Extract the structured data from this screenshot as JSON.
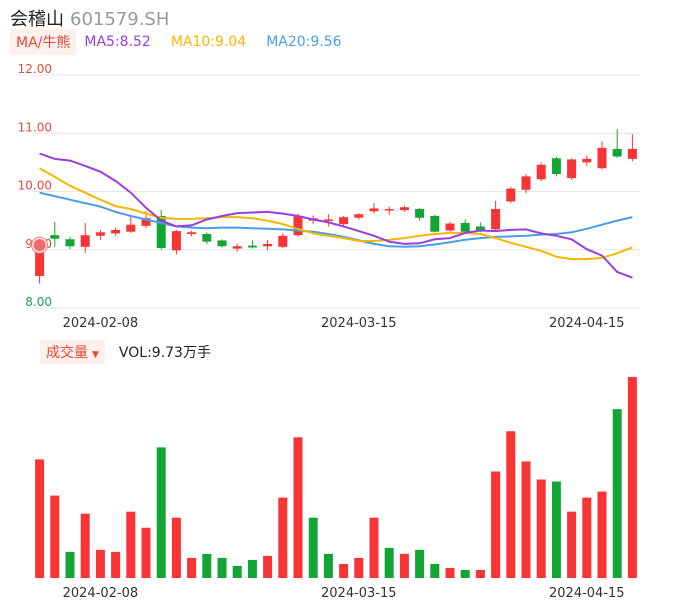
{
  "header": {
    "name": "会稽山",
    "code": "601579.SH"
  },
  "legend": {
    "tag": "MA/牛熊",
    "ma5": "MA5:8.52",
    "ma10": "MA10:9.04",
    "ma20": "MA20:9.56",
    "ma5_color": "#9b3ee0",
    "ma10_color": "#f5b800",
    "ma20_color": "#4a9ee8"
  },
  "volume_legend": {
    "tag": "成交量",
    "caret": "▼",
    "label": "VOL:9.73万手"
  },
  "colors": {
    "up": "#f93434",
    "down": "#13a534"
  },
  "chart_data": [
    {
      "type": "candlestick",
      "ylim": [
        8.0,
        12.0
      ],
      "y_ticks": [
        "12.00",
        "11.00",
        "10.00",
        "9.00",
        "8.00"
      ],
      "x_ticks": [
        "2024-02-08",
        "2024-03-15",
        "2024-04-15"
      ],
      "x_tick_index": [
        4,
        21,
        36
      ],
      "candles": [
        {
          "o": 8.55,
          "c": 9.08,
          "h": 9.12,
          "l": 8.42
        },
        {
          "o": 9.25,
          "c": 9.19,
          "h": 9.48,
          "l": 9.05
        },
        {
          "o": 9.18,
          "c": 9.06,
          "h": 9.22,
          "l": 9.01
        },
        {
          "o": 9.05,
          "c": 9.25,
          "h": 9.46,
          "l": 8.95
        },
        {
          "o": 9.24,
          "c": 9.3,
          "h": 9.34,
          "l": 9.17
        },
        {
          "o": 9.28,
          "c": 9.34,
          "h": 9.38,
          "l": 9.24
        },
        {
          "o": 9.31,
          "c": 9.43,
          "h": 9.6,
          "l": 9.29
        },
        {
          "o": 9.41,
          "c": 9.54,
          "h": 9.66,
          "l": 9.37
        },
        {
          "o": 9.58,
          "c": 9.03,
          "h": 9.68,
          "l": 9.0
        },
        {
          "o": 8.99,
          "c": 9.32,
          "h": 9.34,
          "l": 8.92
        },
        {
          "o": 9.27,
          "c": 9.3,
          "h": 9.33,
          "l": 9.23
        },
        {
          "o": 9.27,
          "c": 9.14,
          "h": 9.3,
          "l": 9.1
        },
        {
          "o": 9.16,
          "c": 9.06,
          "h": 9.18,
          "l": 9.04
        },
        {
          "o": 9.02,
          "c": 9.06,
          "h": 9.1,
          "l": 8.97
        },
        {
          "o": 9.07,
          "c": 9.04,
          "h": 9.16,
          "l": 9.02
        },
        {
          "o": 9.06,
          "c": 9.1,
          "h": 9.17,
          "l": 8.99
        },
        {
          "o": 9.05,
          "c": 9.24,
          "h": 9.28,
          "l": 9.03
        },
        {
          "o": 9.25,
          "c": 9.57,
          "h": 9.62,
          "l": 9.22
        },
        {
          "o": 9.5,
          "c": 9.54,
          "h": 9.59,
          "l": 9.44
        },
        {
          "o": 9.52,
          "c": 9.52,
          "h": 9.61,
          "l": 9.4
        },
        {
          "o": 9.44,
          "c": 9.56,
          "h": 9.58,
          "l": 9.41
        },
        {
          "o": 9.55,
          "c": 9.61,
          "h": 9.63,
          "l": 9.52
        },
        {
          "o": 9.66,
          "c": 9.71,
          "h": 9.8,
          "l": 9.62
        },
        {
          "o": 9.68,
          "c": 9.7,
          "h": 9.74,
          "l": 9.6
        },
        {
          "o": 9.68,
          "c": 9.73,
          "h": 9.76,
          "l": 9.65
        },
        {
          "o": 9.7,
          "c": 9.55,
          "h": 9.72,
          "l": 9.5
        },
        {
          "o": 9.58,
          "c": 9.31,
          "h": 9.6,
          "l": 9.3
        },
        {
          "o": 9.33,
          "c": 9.45,
          "h": 9.48,
          "l": 9.3
        },
        {
          "o": 9.46,
          "c": 9.31,
          "h": 9.52,
          "l": 9.29
        },
        {
          "o": 9.4,
          "c": 9.34,
          "h": 9.47,
          "l": 9.3
        },
        {
          "o": 9.35,
          "c": 9.7,
          "h": 9.84,
          "l": 9.33
        },
        {
          "o": 9.83,
          "c": 10.05,
          "h": 10.08,
          "l": 9.8
        },
        {
          "o": 10.03,
          "c": 10.26,
          "h": 10.3,
          "l": 9.97
        },
        {
          "o": 10.21,
          "c": 10.46,
          "h": 10.5,
          "l": 10.18
        },
        {
          "o": 10.57,
          "c": 10.3,
          "h": 10.6,
          "l": 10.26
        },
        {
          "o": 10.23,
          "c": 10.55,
          "h": 10.57,
          "l": 10.2
        },
        {
          "o": 10.5,
          "c": 10.56,
          "h": 10.62,
          "l": 10.44
        },
        {
          "o": 10.4,
          "c": 10.75,
          "h": 10.86,
          "l": 10.38
        },
        {
          "o": 10.73,
          "c": 10.6,
          "h": 11.07,
          "l": 10.58
        },
        {
          "o": 10.56,
          "c": 10.73,
          "h": 10.98,
          "l": 10.52
        }
      ],
      "ma5": [
        10.65,
        10.56,
        10.53,
        10.44,
        10.34,
        10.18,
        9.98,
        9.72,
        9.5,
        9.4,
        9.42,
        9.52,
        9.58,
        9.63,
        9.64,
        9.65,
        9.62,
        9.58,
        9.52,
        9.47,
        9.4,
        9.32,
        9.24,
        9.14,
        9.1,
        9.11,
        9.18,
        9.2,
        9.29,
        9.33,
        9.32,
        9.34,
        9.35,
        9.28,
        9.24,
        9.18,
        9.01,
        8.9,
        8.62,
        8.52
      ],
      "ma10": [
        10.4,
        10.25,
        10.1,
        9.98,
        9.86,
        9.75,
        9.7,
        9.62,
        9.55,
        9.53,
        9.53,
        9.54,
        9.56,
        9.56,
        9.54,
        9.5,
        9.44,
        9.36,
        9.28,
        9.24,
        9.2,
        9.15,
        9.15,
        9.17,
        9.2,
        9.24,
        9.27,
        9.29,
        9.29,
        9.27,
        9.2,
        9.12,
        9.05,
        8.98,
        8.88,
        8.84,
        8.84,
        8.86,
        8.94,
        9.04
      ],
      "ma20": [
        9.98,
        9.92,
        9.86,
        9.8,
        9.74,
        9.65,
        9.58,
        9.52,
        9.46,
        9.4,
        9.38,
        9.37,
        9.38,
        9.38,
        9.37,
        9.36,
        9.35,
        9.33,
        9.31,
        9.27,
        9.22,
        9.16,
        9.1,
        9.06,
        9.05,
        9.06,
        9.09,
        9.13,
        9.17,
        9.2,
        9.22,
        9.23,
        9.24,
        9.26,
        9.27,
        9.3,
        9.36,
        9.43,
        9.5,
        9.56
      ]
    },
    {
      "type": "bar",
      "series_name": "成交量",
      "x_ticks": [
        "2024-02-08",
        "2024-03-15",
        "2024-04-15"
      ],
      "ylim": [
        0,
        1.0
      ],
      "values": [
        0.59,
        0.41,
        0.13,
        0.32,
        0.14,
        0.13,
        0.33,
        0.25,
        0.65,
        0.3,
        0.1,
        0.12,
        0.1,
        0.06,
        0.09,
        0.11,
        0.4,
        0.7,
        0.3,
        0.12,
        0.07,
        0.1,
        0.3,
        0.15,
        0.12,
        0.14,
        0.07,
        0.05,
        0.04,
        0.04,
        0.53,
        0.73,
        0.58,
        0.49,
        0.48,
        0.33,
        0.4,
        0.43,
        0.84,
        1.0
      ],
      "directions": [
        "up",
        "up",
        "down",
        "up",
        "up",
        "up",
        "up",
        "up",
        "down",
        "up",
        "up",
        "down",
        "down",
        "down",
        "down",
        "up",
        "up",
        "up",
        "down",
        "down",
        "up",
        "up",
        "up",
        "down",
        "up",
        "down",
        "down",
        "up",
        "down",
        "up",
        "up",
        "up",
        "up",
        "up",
        "down",
        "up",
        "up",
        "up",
        "down",
        "up"
      ]
    }
  ]
}
